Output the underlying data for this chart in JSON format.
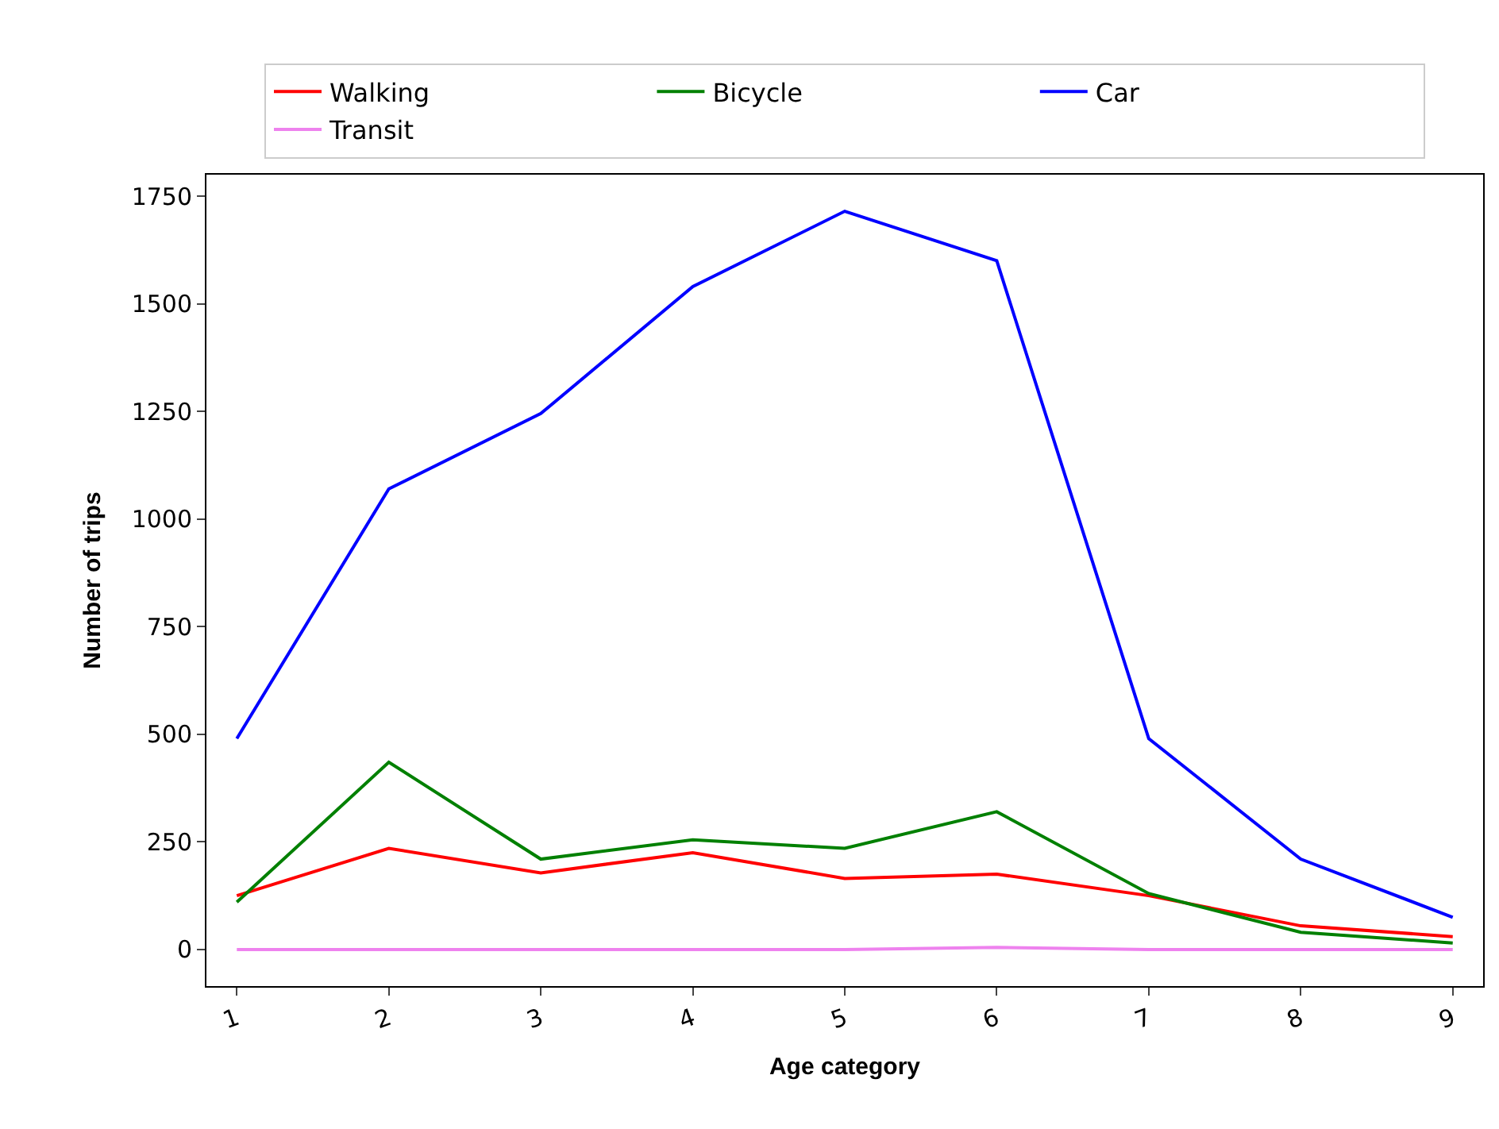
{
  "chart_data": {
    "type": "line",
    "xlabel": "Age category",
    "ylabel": "Number of trips",
    "categories": [
      "1",
      "2",
      "3",
      "4",
      "5",
      "6",
      "7",
      "8",
      "9"
    ],
    "series": [
      {
        "name": "Walking",
        "color": "#ff0000",
        "values": [
          125,
          235,
          178,
          225,
          165,
          175,
          125,
          55,
          30
        ]
      },
      {
        "name": "Bicycle",
        "color": "#008000",
        "values": [
          110,
          435,
          210,
          255,
          235,
          320,
          130,
          40,
          15
        ]
      },
      {
        "name": "Car",
        "color": "#0000ff",
        "values": [
          490,
          1070,
          1245,
          1540,
          1715,
          1600,
          490,
          210,
          75
        ]
      },
      {
        "name": "Transit",
        "color": "#ee82ee",
        "values": [
          0,
          0,
          0,
          0,
          0,
          5,
          0,
          0,
          0
        ]
      }
    ],
    "ylim": [
      -85,
      1800
    ],
    "yticks": [
      0,
      250,
      500,
      750,
      1000,
      1250,
      1500,
      1750
    ],
    "legend": "top"
  }
}
